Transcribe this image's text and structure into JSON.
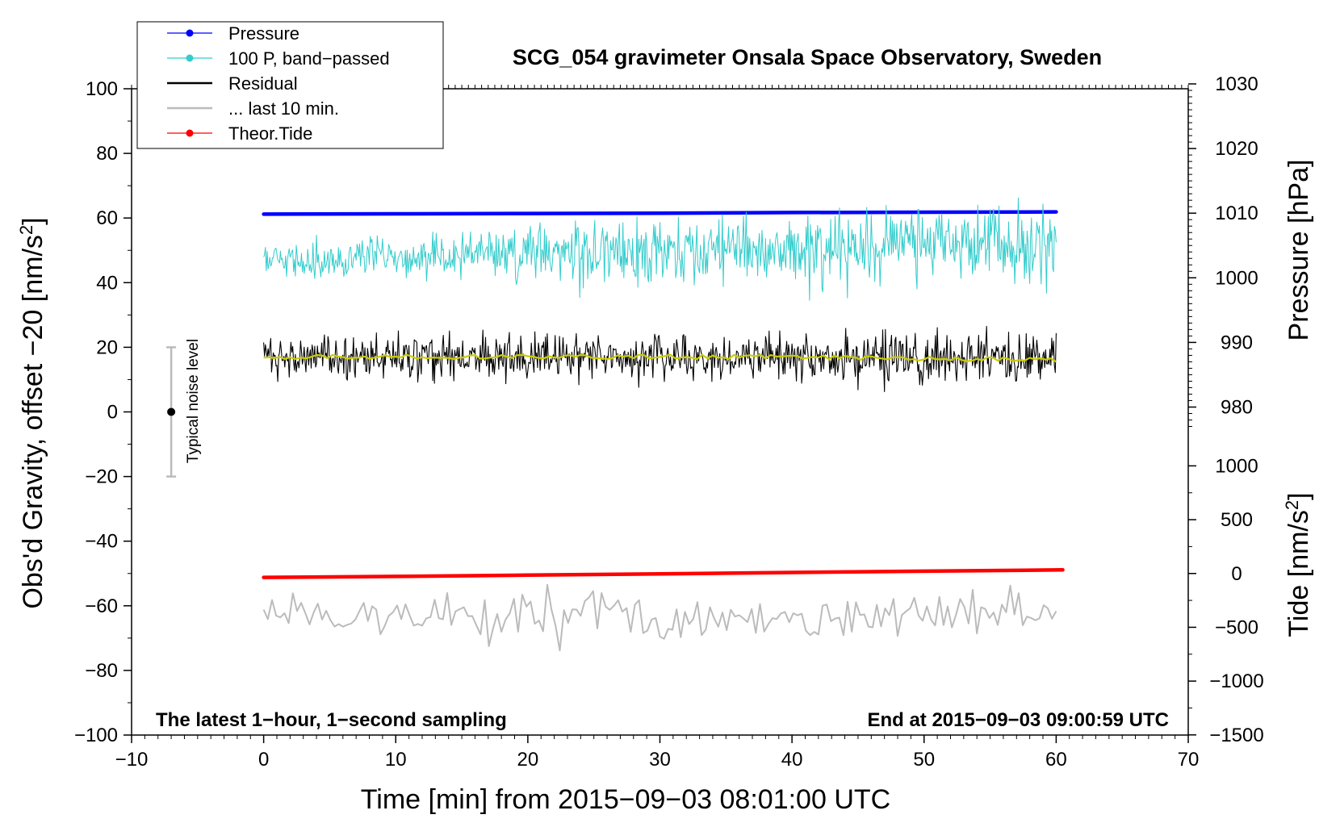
{
  "chart_data": {
    "type": "line",
    "title": "SCG_054 gravimeter Onsala Space Observatory, Sweden",
    "xlabel": "Time [min] from 2015−09−03 08:01:00 UTC",
    "ylabel": "Obs'd Gravity, offset −20 [nm/s²]",
    "ylabel_main": "Obs'd Gravity, offset −20 [nm/s",
    "ylabel_sup": "2",
    "ylabel_end": "]",
    "xlim": [
      -10,
      70
    ],
    "ylim": [
      -100,
      100
    ],
    "x_ticks": [
      "−10",
      "0",
      "10",
      "20",
      "30",
      "40",
      "50",
      "60",
      "70"
    ],
    "x_tick_values": [
      -10,
      0,
      10,
      20,
      30,
      40,
      50,
      60,
      70
    ],
    "y_ticks": [
      "100",
      "80",
      "60",
      "40",
      "20",
      "0",
      "−20",
      "−40",
      "−60",
      "−80",
      "−100"
    ],
    "y_tick_values": [
      100,
      80,
      60,
      40,
      20,
      0,
      -20,
      -40,
      -60,
      -80,
      -100
    ],
    "pressure_axis": {
      "label": "Pressure [hPa]",
      "ticks": [
        "1030",
        "1020",
        "1010",
        "1000",
        "990",
        "980"
      ],
      "tick_values": [
        1030,
        1020,
        1010,
        1000,
        990,
        980
      ],
      "grav_per_hpa": 2,
      "ref_hpa": 1010,
      "ref_grav": 61.5
    },
    "tide_axis": {
      "label_main": "Tide [nm/s",
      "label_sup": "2",
      "label_end": "]",
      "ticks": [
        "1000",
        "500",
        "0",
        "−500",
        "−1000",
        "−1500"
      ],
      "tick_values": [
        1000,
        500,
        0,
        -500,
        -1000,
        -1500
      ],
      "grav_per_unit": 0.0333,
      "ref_tide": 0,
      "ref_grav": -50
    },
    "series": [
      {
        "name": "Pressure",
        "color": "#0000ff",
        "style": "line-dot",
        "x": [
          0,
          10,
          20,
          30,
          40,
          50,
          60
        ],
        "y": [
          61.2,
          61.3,
          61.4,
          61.5,
          61.7,
          61.8,
          61.9
        ]
      },
      {
        "name": "100 P, band−passed",
        "color": "#33cccc",
        "style": "noisy",
        "x_range": [
          0,
          60
        ],
        "center": [
          47,
          48,
          49,
          50,
          51,
          52,
          53
        ],
        "amplitude": [
          2.5,
          3,
          4,
          5,
          5.5,
          6,
          7
        ]
      },
      {
        "name": "Residual",
        "color": "#000000",
        "style": "noisy",
        "x_range": [
          0,
          60
        ],
        "center": [
          17,
          17,
          17,
          17,
          17,
          16.5,
          16
        ],
        "amplitude": [
          3,
          3.5,
          3.5,
          3.5,
          3.5,
          4,
          4
        ]
      },
      {
        "name": "... last 10 min.",
        "color": "#bbbbbb",
        "style": "noisy",
        "x_range": [
          0,
          60
        ],
        "center": [
          -63,
          -63,
          -63,
          -63,
          -63,
          -63,
          -63
        ],
        "amplitude": [
          3,
          4,
          5,
          4,
          3,
          4,
          3
        ]
      },
      {
        "name": "Theor.Tide",
        "color": "#ff0000",
        "style": "line-dot",
        "x": [
          0,
          10,
          20,
          30,
          40,
          50,
          60.5
        ],
        "y": [
          -51.2,
          -50.9,
          -50.5,
          -50.1,
          -49.7,
          -49.3,
          -48.9
        ]
      }
    ],
    "smoothed_residual": {
      "color": "#cccc00"
    },
    "noise_bar": {
      "x": -7,
      "center": 0,
      "low": -20,
      "high": 20,
      "label": "Typical noise level"
    },
    "legend_position": "top-left",
    "annotations": {
      "bottom_left": "The latest 1−hour, 1−second sampling",
      "bottom_right": "End at 2015−09−03 09:00:59 UTC"
    }
  }
}
